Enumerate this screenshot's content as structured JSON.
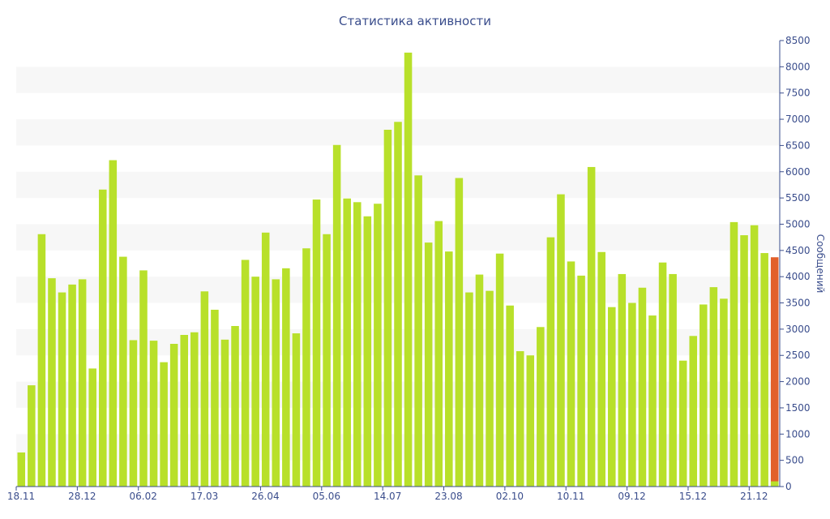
{
  "chart_data": {
    "type": "bar",
    "title": "Статистика активности",
    "xlabel": "",
    "ylabel": "Сообщений",
    "ylim": [
      0,
      8500
    ],
    "ytick_step": 500,
    "grid": "alternating horizontal bands",
    "legend": "none",
    "colors": {
      "bar": "#b8e02a",
      "current_bar": "#e2602b",
      "current_bar_base": "#b8e02a",
      "band": "#f7f7f7",
      "axis": "#3a4d8c",
      "text": "#3a4d8c"
    },
    "x_tick_labels": [
      {
        "index": 0,
        "label": "18.11"
      },
      {
        "index": 6,
        "label": "28.12"
      },
      {
        "index": 12,
        "label": "06.02"
      },
      {
        "index": 18,
        "label": "17.03"
      },
      {
        "index": 24,
        "label": "26.04"
      },
      {
        "index": 30,
        "label": "05.06"
      },
      {
        "index": 36,
        "label": "14.07"
      },
      {
        "index": 42,
        "label": "23.08"
      },
      {
        "index": 48,
        "label": "02.10"
      },
      {
        "index": 54,
        "label": "10.11"
      },
      {
        "index": 60,
        "label": "09.12"
      },
      {
        "index": 66,
        "label": "15.12"
      },
      {
        "index": 72,
        "label": "21.12"
      }
    ],
    "values": [
      650,
      1930,
      4810,
      3970,
      3700,
      3850,
      3950,
      2250,
      5660,
      6220,
      4380,
      2790,
      4120,
      2780,
      2370,
      2720,
      2890,
      2940,
      3720,
      3370,
      2800,
      3060,
      4320,
      4000,
      4840,
      3950,
      4160,
      2920,
      4540,
      5470,
      4810,
      6510,
      5490,
      5420,
      5150,
      5390,
      6800,
      6950,
      8270,
      5930,
      4650,
      5060,
      4480,
      5880,
      3700,
      4040,
      3730,
      4440,
      3450,
      2580,
      2500,
      3040,
      4750,
      5570,
      4290,
      4020,
      6090,
      4470,
      3420,
      4050,
      3500,
      3790,
      3260,
      4270,
      4050,
      2400,
      2870,
      3470,
      3800,
      3580,
      5040,
      4790,
      4980,
      4450
    ],
    "current_period": {
      "total": 4370,
      "completed_part": 100
    }
  }
}
